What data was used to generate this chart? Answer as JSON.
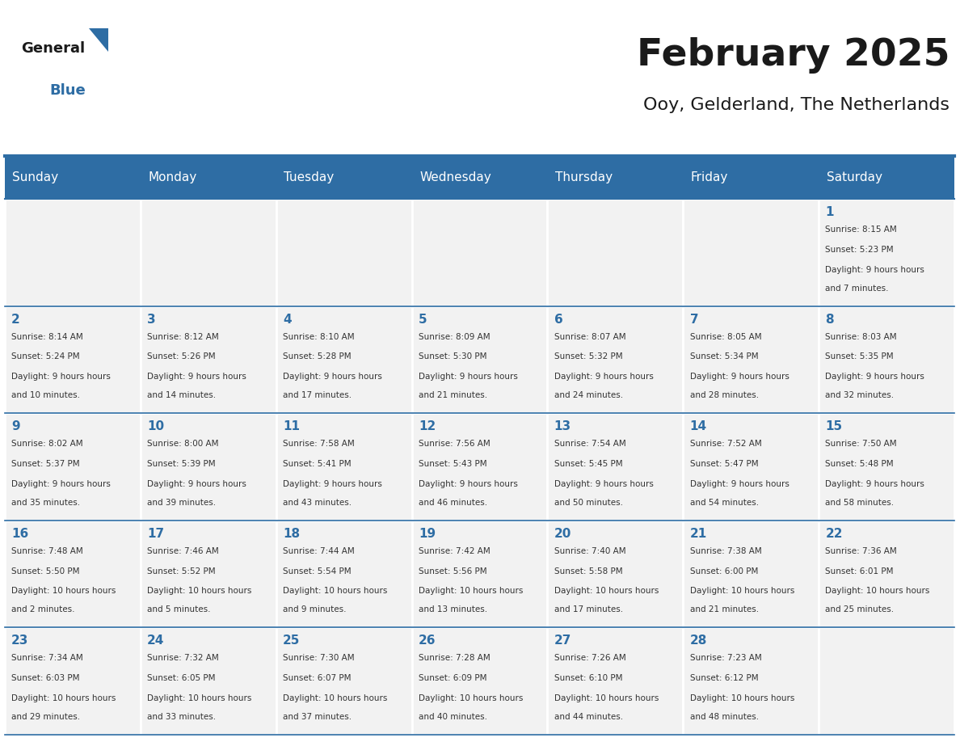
{
  "title": "February 2025",
  "subtitle": "Ooy, Gelderland, The Netherlands",
  "header_bg_color": "#2E6DA4",
  "header_text_color": "#FFFFFF",
  "day_names": [
    "Sunday",
    "Monday",
    "Tuesday",
    "Wednesday",
    "Thursday",
    "Friday",
    "Saturday"
  ],
  "cell_bg_color": "#F2F2F2",
  "border_color": "#2E6DA4",
  "day_num_color": "#2E6DA4",
  "text_color": "#333333",
  "days": [
    {
      "day": 1,
      "col": 6,
      "row": 0,
      "sunrise": "8:15 AM",
      "sunset": "5:23 PM",
      "daylight": "9 hours and 7 minutes"
    },
    {
      "day": 2,
      "col": 0,
      "row": 1,
      "sunrise": "8:14 AM",
      "sunset": "5:24 PM",
      "daylight": "9 hours and 10 minutes"
    },
    {
      "day": 3,
      "col": 1,
      "row": 1,
      "sunrise": "8:12 AM",
      "sunset": "5:26 PM",
      "daylight": "9 hours and 14 minutes"
    },
    {
      "day": 4,
      "col": 2,
      "row": 1,
      "sunrise": "8:10 AM",
      "sunset": "5:28 PM",
      "daylight": "9 hours and 17 minutes"
    },
    {
      "day": 5,
      "col": 3,
      "row": 1,
      "sunrise": "8:09 AM",
      "sunset": "5:30 PM",
      "daylight": "9 hours and 21 minutes"
    },
    {
      "day": 6,
      "col": 4,
      "row": 1,
      "sunrise": "8:07 AM",
      "sunset": "5:32 PM",
      "daylight": "9 hours and 24 minutes"
    },
    {
      "day": 7,
      "col": 5,
      "row": 1,
      "sunrise": "8:05 AM",
      "sunset": "5:34 PM",
      "daylight": "9 hours and 28 minutes"
    },
    {
      "day": 8,
      "col": 6,
      "row": 1,
      "sunrise": "8:03 AM",
      "sunset": "5:35 PM",
      "daylight": "9 hours and 32 minutes"
    },
    {
      "day": 9,
      "col": 0,
      "row": 2,
      "sunrise": "8:02 AM",
      "sunset": "5:37 PM",
      "daylight": "9 hours and 35 minutes"
    },
    {
      "day": 10,
      "col": 1,
      "row": 2,
      "sunrise": "8:00 AM",
      "sunset": "5:39 PM",
      "daylight": "9 hours and 39 minutes"
    },
    {
      "day": 11,
      "col": 2,
      "row": 2,
      "sunrise": "7:58 AM",
      "sunset": "5:41 PM",
      "daylight": "9 hours and 43 minutes"
    },
    {
      "day": 12,
      "col": 3,
      "row": 2,
      "sunrise": "7:56 AM",
      "sunset": "5:43 PM",
      "daylight": "9 hours and 46 minutes"
    },
    {
      "day": 13,
      "col": 4,
      "row": 2,
      "sunrise": "7:54 AM",
      "sunset": "5:45 PM",
      "daylight": "9 hours and 50 minutes"
    },
    {
      "day": 14,
      "col": 5,
      "row": 2,
      "sunrise": "7:52 AM",
      "sunset": "5:47 PM",
      "daylight": "9 hours and 54 minutes"
    },
    {
      "day": 15,
      "col": 6,
      "row": 2,
      "sunrise": "7:50 AM",
      "sunset": "5:48 PM",
      "daylight": "9 hours and 58 minutes"
    },
    {
      "day": 16,
      "col": 0,
      "row": 3,
      "sunrise": "7:48 AM",
      "sunset": "5:50 PM",
      "daylight": "10 hours and 2 minutes"
    },
    {
      "day": 17,
      "col": 1,
      "row": 3,
      "sunrise": "7:46 AM",
      "sunset": "5:52 PM",
      "daylight": "10 hours and 5 minutes"
    },
    {
      "day": 18,
      "col": 2,
      "row": 3,
      "sunrise": "7:44 AM",
      "sunset": "5:54 PM",
      "daylight": "10 hours and 9 minutes"
    },
    {
      "day": 19,
      "col": 3,
      "row": 3,
      "sunrise": "7:42 AM",
      "sunset": "5:56 PM",
      "daylight": "10 hours and 13 minutes"
    },
    {
      "day": 20,
      "col": 4,
      "row": 3,
      "sunrise": "7:40 AM",
      "sunset": "5:58 PM",
      "daylight": "10 hours and 17 minutes"
    },
    {
      "day": 21,
      "col": 5,
      "row": 3,
      "sunrise": "7:38 AM",
      "sunset": "6:00 PM",
      "daylight": "10 hours and 21 minutes"
    },
    {
      "day": 22,
      "col": 6,
      "row": 3,
      "sunrise": "7:36 AM",
      "sunset": "6:01 PM",
      "daylight": "10 hours and 25 minutes"
    },
    {
      "day": 23,
      "col": 0,
      "row": 4,
      "sunrise": "7:34 AM",
      "sunset": "6:03 PM",
      "daylight": "10 hours and 29 minutes"
    },
    {
      "day": 24,
      "col": 1,
      "row": 4,
      "sunrise": "7:32 AM",
      "sunset": "6:05 PM",
      "daylight": "10 hours and 33 minutes"
    },
    {
      "day": 25,
      "col": 2,
      "row": 4,
      "sunrise": "7:30 AM",
      "sunset": "6:07 PM",
      "daylight": "10 hours and 37 minutes"
    },
    {
      "day": 26,
      "col": 3,
      "row": 4,
      "sunrise": "7:28 AM",
      "sunset": "6:09 PM",
      "daylight": "10 hours and 40 minutes"
    },
    {
      "day": 27,
      "col": 4,
      "row": 4,
      "sunrise": "7:26 AM",
      "sunset": "6:10 PM",
      "daylight": "10 hours and 44 minutes"
    },
    {
      "day": 28,
      "col": 5,
      "row": 4,
      "sunrise": "7:23 AM",
      "sunset": "6:12 PM",
      "daylight": "10 hours and 48 minutes"
    }
  ]
}
